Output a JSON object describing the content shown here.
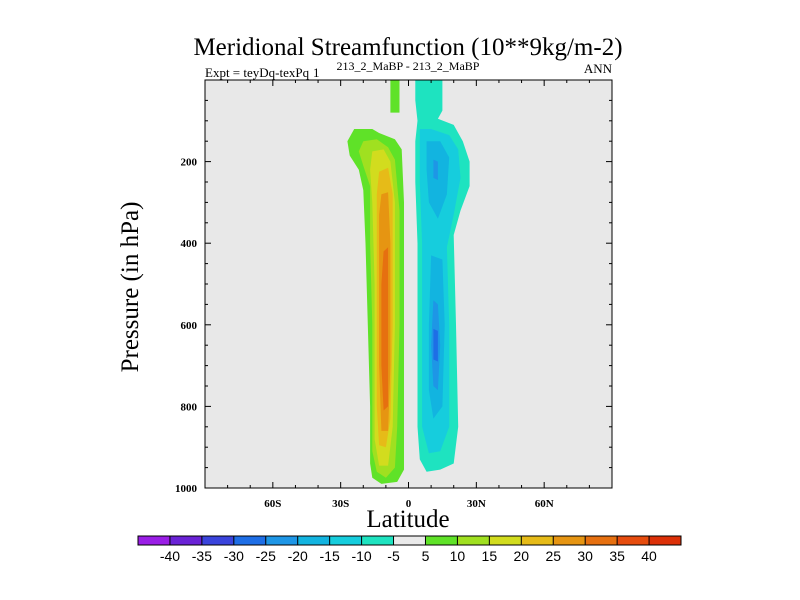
{
  "chart_data": {
    "type": "heatmap",
    "title": "Meridional Streamfunction (10**9kg/m-2)",
    "subtitle_left": "Expt = teyDq-texPq",
    "subtitle_center": "213_2_MaBP - 213_2_MaBP",
    "subtitle_center_prefix": "1",
    "subtitle_right": "ANN",
    "xlabel": "Latitude",
    "ylabel": "Pressure (in hPa)",
    "xlim": [
      -90,
      90
    ],
    "ylim": [
      1000,
      0
    ],
    "x_ticks": [
      {
        "value": -60,
        "label": "60S"
      },
      {
        "value": -30,
        "label": "30S"
      },
      {
        "value": 0,
        "label": "0"
      },
      {
        "value": 30,
        "label": "30N"
      },
      {
        "value": 60,
        "label": "60N"
      }
    ],
    "y_ticks": [
      {
        "value": 200,
        "label": "200"
      },
      {
        "value": 400,
        "label": "400"
      },
      {
        "value": 600,
        "label": "600"
      },
      {
        "value": 800,
        "label": "800"
      },
      {
        "value": 1000,
        "label": "1000"
      }
    ],
    "background_color": "#e8e8e8",
    "colorbar": {
      "labels": [
        "-40",
        "-35",
        "-30",
        "-25",
        "-20",
        "-15",
        "-10",
        "-5",
        "5",
        "10",
        "15",
        "20",
        "25",
        "30",
        "35",
        "40"
      ],
      "colors": [
        "#9a1ee6",
        "#6a22d6",
        "#3a44dc",
        "#1e6ee6",
        "#1e96e6",
        "#12b4e0",
        "#16cddd",
        "#1ee3c0",
        "#eaeaea",
        "#5fe228",
        "#a0e020",
        "#d2dc1e",
        "#e6bb18",
        "#e69512",
        "#e67010",
        "#e64c0e",
        "#dc3008"
      ]
    },
    "contours": [
      {
        "name": "positive-cell-outer",
        "color": "#5fe228",
        "polygon": [
          [
            -24,
            120
          ],
          [
            -16,
            120
          ],
          [
            -13,
            130
          ],
          [
            -6,
            145
          ],
          [
            -3,
            170
          ],
          [
            -2,
            300
          ],
          [
            -2,
            600
          ],
          [
            -2,
            850
          ],
          [
            -2,
            955
          ],
          [
            -5,
            985
          ],
          [
            -12,
            990
          ],
          [
            -16,
            975
          ],
          [
            -17,
            940
          ],
          [
            -17,
            800
          ],
          [
            -18,
            600
          ],
          [
            -19,
            400
          ],
          [
            -20,
            270
          ],
          [
            -22,
            220
          ],
          [
            -26,
            185
          ],
          [
            -27,
            150
          ]
        ]
      },
      {
        "name": "positive-cell-10",
        "color": "#a0e020",
        "polygon": [
          [
            -20,
            150
          ],
          [
            -14,
            145
          ],
          [
            -9,
            165
          ],
          [
            -6,
            195
          ],
          [
            -4,
            320
          ],
          [
            -4,
            600
          ],
          [
            -5,
            850
          ],
          [
            -6,
            950
          ],
          [
            -10,
            975
          ],
          [
            -14,
            960
          ],
          [
            -16,
            910
          ],
          [
            -16,
            800
          ],
          [
            -16,
            600
          ],
          [
            -17,
            400
          ],
          [
            -17,
            260
          ],
          [
            -20,
            210
          ],
          [
            -22,
            175
          ]
        ]
      },
      {
        "name": "positive-cell-15",
        "color": "#d2dc1e",
        "polygon": [
          [
            -16,
            175
          ],
          [
            -11,
            170
          ],
          [
            -8,
            200
          ],
          [
            -6,
            300
          ],
          [
            -6,
            600
          ],
          [
            -7,
            850
          ],
          [
            -9,
            945
          ],
          [
            -13,
            945
          ],
          [
            -15,
            880
          ],
          [
            -15,
            700
          ],
          [
            -15,
            500
          ],
          [
            -16,
            300
          ],
          [
            -17,
            220
          ]
        ]
      },
      {
        "name": "positive-cell-20",
        "color": "#e6bb18",
        "polygon": [
          [
            -13,
            225
          ],
          [
            -9,
            215
          ],
          [
            -7,
            280
          ],
          [
            -7,
            600
          ],
          [
            -8,
            830
          ],
          [
            -10,
            900
          ],
          [
            -13,
            895
          ],
          [
            -14,
            800
          ],
          [
            -14,
            600
          ],
          [
            -14,
            400
          ],
          [
            -14,
            280
          ]
        ]
      },
      {
        "name": "positive-cell-25",
        "color": "#e69512",
        "polygon": [
          [
            -12,
            280
          ],
          [
            -9,
            275
          ],
          [
            -8,
            400
          ],
          [
            -8,
            700
          ],
          [
            -9,
            860
          ],
          [
            -12,
            860
          ],
          [
            -13,
            700
          ],
          [
            -13,
            450
          ],
          [
            -13,
            330
          ]
        ]
      },
      {
        "name": "positive-cell-30",
        "color": "#e67010",
        "polygon": [
          [
            -11,
            420
          ],
          [
            -9,
            410
          ],
          [
            -9,
            600
          ],
          [
            -9,
            800
          ],
          [
            -11,
            810
          ],
          [
            -12,
            700
          ],
          [
            -12,
            500
          ]
        ]
      },
      {
        "name": "positive-cell-upper-strand",
        "color": "#5fe228",
        "polygon": [
          [
            -8,
            0
          ],
          [
            -4,
            0
          ],
          [
            -4,
            80
          ],
          [
            -8,
            80
          ]
        ]
      },
      {
        "name": "negative-cell-outer",
        "color": "#1ee3c0",
        "polygon": [
          [
            3,
            0
          ],
          [
            15,
            0
          ],
          [
            15,
            75
          ],
          [
            13,
            95
          ],
          [
            20,
            110
          ],
          [
            24,
            150
          ],
          [
            27,
            200
          ],
          [
            27,
            260
          ],
          [
            23,
            320
          ],
          [
            20,
            380
          ],
          [
            21,
            600
          ],
          [
            22,
            850
          ],
          [
            20,
            940
          ],
          [
            14,
            955
          ],
          [
            8,
            960
          ],
          [
            5,
            930
          ],
          [
            4,
            850
          ],
          [
            4,
            600
          ],
          [
            4,
            400
          ],
          [
            3,
            250
          ],
          [
            3,
            150
          ],
          [
            4,
            100
          ],
          [
            3,
            50
          ]
        ]
      },
      {
        "name": "negative-cell-10",
        "color": "#16cddd",
        "polygon": [
          [
            5,
            120
          ],
          [
            10,
            120
          ],
          [
            18,
            135
          ],
          [
            22,
            170
          ],
          [
            23,
            240
          ],
          [
            20,
            330
          ],
          [
            17,
            410
          ],
          [
            18,
            600
          ],
          [
            18,
            850
          ],
          [
            14,
            910
          ],
          [
            9,
            915
          ],
          [
            6,
            850
          ],
          [
            6,
            600
          ],
          [
            6,
            400
          ],
          [
            5,
            250
          ]
        ]
      },
      {
        "name": "negative-cell-15-upper",
        "color": "#12b4e0",
        "polygon": [
          [
            8,
            150
          ],
          [
            14,
            150
          ],
          [
            18,
            190
          ],
          [
            17,
            280
          ],
          [
            13,
            340
          ],
          [
            9,
            300
          ],
          [
            8,
            220
          ]
        ]
      },
      {
        "name": "negative-cell-15-lower",
        "color": "#12b4e0",
        "polygon": [
          [
            10,
            430
          ],
          [
            15,
            440
          ],
          [
            16,
            600
          ],
          [
            15,
            800
          ],
          [
            11,
            830
          ],
          [
            9,
            760
          ],
          [
            9,
            600
          ]
        ]
      },
      {
        "name": "negative-cell-20-upper",
        "color": "#1e96e6",
        "polygon": [
          [
            11,
            195
          ],
          [
            13,
            200
          ],
          [
            13,
            245
          ],
          [
            11,
            240
          ]
        ]
      },
      {
        "name": "negative-cell-20-lower",
        "color": "#1e96e6",
        "polygon": [
          [
            11,
            540
          ],
          [
            13,
            550
          ],
          [
            14,
            650
          ],
          [
            13,
            760
          ],
          [
            11,
            750
          ],
          [
            10,
            650
          ]
        ]
      },
      {
        "name": "negative-cell-25-core",
        "color": "#1e6ee6",
        "polygon": [
          [
            11,
            610
          ],
          [
            13,
            615
          ],
          [
            13,
            690
          ],
          [
            11,
            685
          ]
        ]
      }
    ]
  }
}
